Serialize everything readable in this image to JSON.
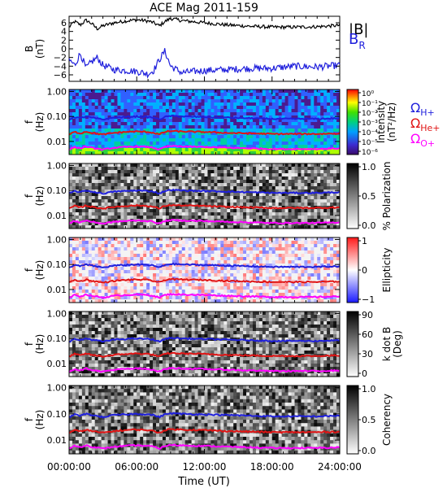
{
  "figure": {
    "title": "ACE Mag 2011-159",
    "xlabel": "Time (UT)",
    "xticks": [
      "00:00:00",
      "06:00:00",
      "12:00:00",
      "18:00:00",
      "24:00:00"
    ]
  },
  "chart_data": [
    {
      "type": "line",
      "panel": "B",
      "ylabel": "B",
      "yunit": "(nT)",
      "xlim": [
        0,
        24
      ],
      "ylim": [
        -7.5,
        7.5
      ],
      "yticks": [
        "6",
        "4",
        "2",
        "0",
        "−2",
        "−4",
        "−6"
      ],
      "ytick_values": [
        6,
        4,
        2,
        0,
        -2,
        -4,
        -6
      ],
      "legend": [
        {
          "label": "|B|",
          "color": "#000000"
        },
        {
          "label": "B",
          "sub": "R",
          "color": "#1f1fdc"
        }
      ],
      "series": [
        {
          "name": "|B|",
          "color": "#000000",
          "x": [
            0,
            0.5,
            1,
            1.5,
            2,
            2.5,
            3,
            4,
            5,
            6,
            7,
            7.5,
            8,
            8.5,
            9,
            10,
            12,
            14,
            16,
            18,
            20,
            22,
            24
          ],
          "y": [
            5.0,
            6.3,
            5.5,
            6.6,
            5.8,
            4.6,
            5.3,
            6.0,
            6.4,
            6.7,
            6.4,
            6.0,
            5.3,
            6.3,
            7.0,
            6.5,
            6.0,
            5.5,
            5.2,
            5.0,
            5.0,
            5.1,
            5.4
          ]
        },
        {
          "name": "B_R",
          "color": "#1f1fdc",
          "x": [
            0,
            0.5,
            1,
            1.5,
            2,
            2.5,
            3,
            4,
            5,
            6,
            7,
            7.5,
            8,
            8.5,
            9,
            10,
            12,
            14,
            16,
            18,
            20,
            22,
            24
          ],
          "y": [
            -2.5,
            -3.8,
            -1.0,
            -4.5,
            -3.0,
            -2.0,
            -3.8,
            -4.8,
            -5.0,
            -5.2,
            -5.8,
            -5.0,
            -2.5,
            -0.5,
            -4.0,
            -5.5,
            -5.0,
            -4.8,
            -4.5,
            -4.5,
            -4.0,
            -4.2,
            -3.8
          ]
        }
      ]
    },
    {
      "type": "heatmap",
      "panel": "intensity",
      "ylabel": "f",
      "yunit": "(Hz)",
      "yscale": "log",
      "ylim": [
        0.003,
        1.2
      ],
      "yticks": [
        "1.00",
        "0.10",
        "0.01"
      ],
      "ytick_values": [
        1,
        0.1,
        0.01
      ],
      "colormap": "rainbow",
      "colorbar": {
        "title": "Intensity",
        "unit": "(nT²/Hz)",
        "ticks": [
          "10⁰",
          "10⁻¹",
          "10⁻²",
          "10⁻³",
          "10⁻⁴",
          "10⁻⁵",
          "10⁻⁶"
        ]
      },
      "legend": [
        {
          "label": "Ω",
          "sub": "H+",
          "color": "#1f1fdc"
        },
        {
          "label": "Ω",
          "sub": "He+",
          "color": "#e01414"
        },
        {
          "label": "Ω",
          "sub": "O+",
          "color": "#ff00ff"
        }
      ]
    },
    {
      "type": "heatmap",
      "panel": "polarization",
      "ylabel": "f",
      "yunit": "(Hz)",
      "yscale": "log",
      "ylim": [
        0.003,
        1.2
      ],
      "yticks": [
        "1.00",
        "0.10",
        "0.01"
      ],
      "ytick_values": [
        1,
        0.1,
        0.01
      ],
      "colormap": "gray",
      "colorbar": {
        "title": "% Polarization",
        "unit": "",
        "ticks": [
          "1.0",
          "0.5",
          "0.0"
        ]
      }
    },
    {
      "type": "heatmap",
      "panel": "ellipticity",
      "ylabel": "f",
      "yunit": "(Hz)",
      "yscale": "log",
      "ylim": [
        0.003,
        1.2
      ],
      "yticks": [
        "1.00",
        "0.10",
        "0.01"
      ],
      "ytick_values": [
        1,
        0.1,
        0.01
      ],
      "colormap": "blue-white-red",
      "colorbar": {
        "title": "Ellipticity",
        "unit": "",
        "ticks": [
          "1",
          "0",
          "−1"
        ]
      }
    },
    {
      "type": "heatmap",
      "panel": "kdotb",
      "ylabel": "f",
      "yunit": "(Hz)",
      "yscale": "log",
      "ylim": [
        0.003,
        1.2
      ],
      "yticks": [
        "1.00",
        "0.10",
        "0.01"
      ],
      "ytick_values": [
        1,
        0.1,
        0.01
      ],
      "colormap": "gray",
      "colorbar": {
        "title": "k dot B",
        "unit": "(Deg)",
        "ticks": [
          "90",
          "60",
          "30",
          "0"
        ]
      }
    },
    {
      "type": "heatmap",
      "panel": "coherency",
      "ylabel": "f",
      "yunit": "(Hz)",
      "yscale": "log",
      "ylim": [
        0.003,
        1.2
      ],
      "yticks": [
        "1.00",
        "0.10",
        "0.01"
      ],
      "ytick_values": [
        1,
        0.1,
        0.01
      ],
      "colormap": "gray",
      "colorbar": {
        "title": "Coherency",
        "unit": "",
        "ticks": [
          "1.0",
          "0.5",
          "0.0"
        ]
      }
    }
  ],
  "gyro_lines": {
    "x": [
      0,
      0.5,
      1,
      1.5,
      2,
      3,
      4,
      5,
      6,
      7,
      7.5,
      8,
      8.5,
      9,
      10,
      12,
      14,
      16,
      18,
      20,
      22,
      24
    ],
    "H+": {
      "color": "#1f1fdc",
      "y": [
        0.075,
        0.095,
        0.085,
        0.1,
        0.09,
        0.075,
        0.09,
        0.095,
        0.1,
        0.095,
        0.09,
        0.075,
        0.095,
        0.105,
        0.1,
        0.095,
        0.09,
        0.085,
        0.08,
        0.08,
        0.08,
        0.085
      ]
    },
    "He+": {
      "color": "#e01414",
      "y": [
        0.019,
        0.024,
        0.021,
        0.025,
        0.022,
        0.019,
        0.022,
        0.024,
        0.025,
        0.024,
        0.022,
        0.019,
        0.024,
        0.026,
        0.025,
        0.024,
        0.022,
        0.021,
        0.02,
        0.02,
        0.02,
        0.021
      ]
    },
    "O+": {
      "color": "#ff00ff",
      "y": [
        0.0047,
        0.006,
        0.0053,
        0.0063,
        0.0056,
        0.0047,
        0.0056,
        0.006,
        0.0063,
        0.006,
        0.0056,
        0.0047,
        0.006,
        0.0065,
        0.0063,
        0.006,
        0.0056,
        0.0053,
        0.005,
        0.005,
        0.005,
        0.0053
      ]
    }
  }
}
